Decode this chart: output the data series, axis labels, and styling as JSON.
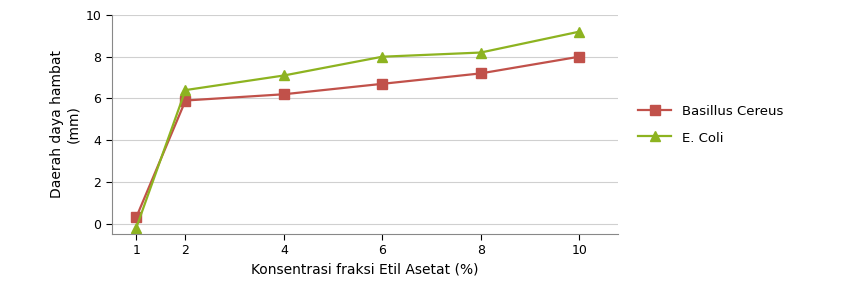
{
  "x": [
    1,
    2,
    4,
    6,
    8,
    10
  ],
  "bacillus_y": [
    0.3,
    5.9,
    6.2,
    6.7,
    7.2,
    8.0
  ],
  "ecoli_y": [
    -0.2,
    6.4,
    7.1,
    8.0,
    8.2,
    9.2
  ],
  "bacillus_color": "#C1514A",
  "ecoli_color": "#8DB320",
  "bacillus_label": "Basillus Cereus",
  "ecoli_label": "E. Coli",
  "xlabel": "Konsentrasi fraksi Etil Asetat (%)",
  "ylabel": "Daerah daya hambat\n(mm)",
  "xlim": [
    0.5,
    10.8
  ],
  "ylim": [
    -0.5,
    10
  ],
  "yticks": [
    0,
    2,
    4,
    6,
    8,
    10
  ],
  "xticks": [
    1,
    2,
    4,
    6,
    8,
    10
  ],
  "linewidth": 1.6,
  "markersize": 7,
  "bacillus_marker": "s",
  "ecoli_marker": "^",
  "background_color": "#ffffff",
  "grid_color": "#d0d0d0",
  "legend_fontsize": 9.5,
  "axis_fontsize": 10,
  "tick_fontsize": 9
}
